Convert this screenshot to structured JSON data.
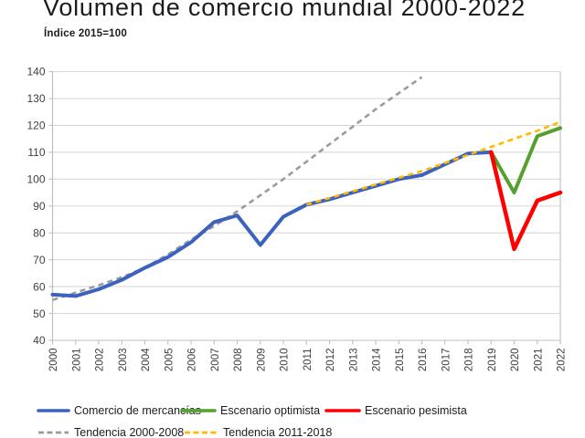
{
  "header": {
    "title": "Volumen de comercio mundial 2000-2022",
    "subtitle": "Índice 2015=100"
  },
  "colors": {
    "merchandise_blue": "#3A62BE",
    "optimistic_green": "#55A02E",
    "pessimistic_red": "#FF0000",
    "trend_gray": "#9B9B9B",
    "trend_orange": "#FFB900",
    "gridline": "#D9D9D9",
    "axis": "#BFBFBF",
    "tick_label": "#404040"
  },
  "chart_data": {
    "type": "line",
    "title": "Volumen de comercio mundial 2000-2022",
    "subtitle": "Índice 2015=100",
    "categories": [
      "2000",
      "2001",
      "2002",
      "2003",
      "2004",
      "2005",
      "2006",
      "2007",
      "2008",
      "2009",
      "2010",
      "2011",
      "2012",
      "2013",
      "2014",
      "2015",
      "2016",
      "2017",
      "2018",
      "2019",
      "2020",
      "2021",
      "2022"
    ],
    "ylim": [
      40,
      140
    ],
    "yticks": [
      40,
      50,
      60,
      70,
      80,
      90,
      100,
      110,
      120,
      130,
      140
    ],
    "grid": true,
    "legend_position": "bottom",
    "series": [
      {
        "name": "Comercio de mercancías",
        "style": "solid",
        "color": "#3A62BE",
        "width": 4,
        "start_year": 2000,
        "values": [
          57,
          56.5,
          59,
          62.5,
          67,
          71,
          76.5,
          84,
          86.5,
          75.5,
          86,
          90.5,
          92.5,
          95,
          97.5,
          100,
          101.5,
          105.5,
          109.5,
          110
        ]
      },
      {
        "name": "Escenario optimista",
        "style": "solid",
        "color": "#55A02E",
        "width": 4,
        "start_year": 2019,
        "values": [
          110,
          95,
          116,
          119
        ]
      },
      {
        "name": "Escenario pesimista",
        "style": "solid",
        "color": "#FF0000",
        "width": 4.5,
        "start_year": 2019,
        "values": [
          110,
          74,
          92,
          95
        ]
      },
      {
        "name": "Tendencia 2000-2008",
        "style": "dashed",
        "color": "#9B9B9B",
        "width": 2.6,
        "start_year": 2000,
        "values": [
          55,
          57.8,
          60.5,
          63.5,
          67,
          72,
          77.5,
          82.5,
          88,
          94,
          100,
          106.5,
          113,
          119.5,
          126,
          132,
          138
        ]
      },
      {
        "name": "Tendencia 2011-2018",
        "style": "dashed",
        "color": "#FFB900",
        "width": 2.6,
        "start_year": 2011,
        "values": [
          90.5,
          93,
          95.5,
          98,
          100.5,
          103,
          106,
          109,
          112,
          115,
          118,
          121.3
        ]
      }
    ]
  }
}
